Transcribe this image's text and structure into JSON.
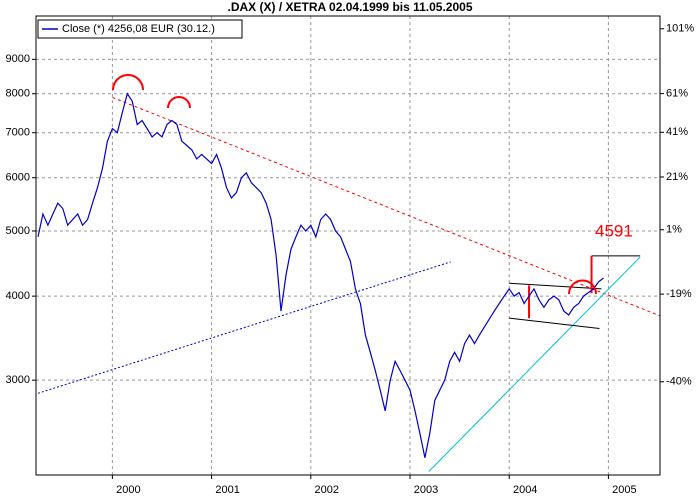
{
  "chart_data": {
    "type": "line",
    "title": ".DAX (X) / XETRA 02.04.1999 bis 11.05.2005",
    "annotation": "4591",
    "log": true,
    "y2log": true,
    "grid": true,
    "legend": "top-left",
    "xlim": [
      1999.23,
      2005.52
    ],
    "xticks": [
      2000,
      2001,
      2002,
      2003,
      2004,
      2005
    ],
    "ylim": [
      2168,
      10440
    ],
    "yticks": [
      3000,
      4000,
      5000,
      6000,
      7000,
      8000,
      9000
    ],
    "y2lim": [
      -56.4,
      110
    ],
    "y2ticks": [
      {
        "value": -40,
        "label": "-40%"
      },
      {
        "value": -19,
        "label": "-19%"
      },
      {
        "value": 1,
        "label": "1%"
      },
      {
        "value": 21,
        "label": "21%"
      },
      {
        "value": 41,
        "label": "41%"
      },
      {
        "value": 61,
        "label": "61%"
      },
      {
        "value": 101,
        "label": "101%"
      }
    ],
    "x": [
      1999.25,
      1999.3,
      1999.35,
      1999.4,
      1999.45,
      1999.5,
      1999.55,
      1999.6,
      1999.65,
      1999.7,
      1999.75,
      1999.8,
      1999.85,
      1999.9,
      1999.95,
      2000.0,
      2000.05,
      2000.1,
      2000.15,
      2000.2,
      2000.25,
      2000.3,
      2000.35,
      2000.4,
      2000.45,
      2000.5,
      2000.55,
      2000.6,
      2000.65,
      2000.7,
      2000.75,
      2000.8,
      2000.85,
      2000.9,
      2000.95,
      2001.0,
      2001.05,
      2001.1,
      2001.15,
      2001.2,
      2001.25,
      2001.3,
      2001.35,
      2001.4,
      2001.45,
      2001.5,
      2001.55,
      2001.6,
      2001.65,
      2001.7,
      2001.75,
      2001.8,
      2001.85,
      2001.9,
      2001.95,
      2002.0,
      2002.05,
      2002.1,
      2002.15,
      2002.2,
      2002.25,
      2002.3,
      2002.35,
      2002.4,
      2002.45,
      2002.5,
      2002.55,
      2002.6,
      2002.65,
      2002.7,
      2002.75,
      2002.8,
      2002.85,
      2002.9,
      2002.95,
      2003.0,
      2003.05,
      2003.1,
      2003.15,
      2003.2,
      2003.25,
      2003.3,
      2003.35,
      2003.4,
      2003.45,
      2003.5,
      2003.55,
      2003.6,
      2003.65,
      2003.7,
      2003.75,
      2003.8,
      2003.85,
      2003.9,
      2003.95,
      2004.0,
      2004.05,
      2004.1,
      2004.15,
      2004.2,
      2004.25,
      2004.3,
      2004.35,
      2004.4,
      2004.45,
      2004.5,
      2004.55,
      2004.6,
      2004.65,
      2004.7,
      2004.75,
      2004.8,
      2004.85,
      2004.9,
      2004.95
    ],
    "series": [
      {
        "name": "Close (*) 4256,08 EUR (30.12.)",
        "color": "#0000cc",
        "values": [
          4900,
          5300,
          5100,
          5300,
          5500,
          5400,
          5100,
          5200,
          5300,
          5100,
          5200,
          5500,
          5800,
          6200,
          6800,
          7100,
          7000,
          7500,
          8000,
          7800,
          7200,
          7300,
          7100,
          6900,
          7000,
          6900,
          7200,
          7300,
          7200,
          6800,
          6700,
          6600,
          6400,
          6500,
          6400,
          6300,
          6500,
          6200,
          5800,
          5600,
          5700,
          6000,
          6100,
          5900,
          5800,
          5700,
          5500,
          5200,
          4600,
          3800,
          4300,
          4700,
          4900,
          5100,
          5000,
          5100,
          4900,
          5200,
          5300,
          5200,
          5000,
          4900,
          4700,
          4500,
          4100,
          3900,
          3500,
          3300,
          3100,
          2900,
          2700,
          3000,
          3200,
          3100,
          3000,
          2900,
          2700,
          2500,
          2300,
          2500,
          2800,
          2900,
          3000,
          3200,
          3300,
          3200,
          3400,
          3500,
          3400,
          3500,
          3600,
          3700,
          3800,
          3900,
          4000,
          4100,
          4000,
          4050,
          3900,
          4000,
          4100,
          3950,
          3850,
          3950,
          4000,
          3950,
          3800,
          3750,
          3850,
          3900,
          4000,
          4050,
          4100,
          4200,
          4256
        ]
      }
    ],
    "trendlines": [
      {
        "color": "#ff0000",
        "style": "dashed",
        "x": [
          2000.0,
          2005.52
        ],
        "values": [
          7900,
          3739
        ]
      },
      {
        "color": "#0000cc",
        "style": "dotted",
        "x": [
          1999.25,
          2003.41
        ],
        "values": [
          2868,
          4498
        ]
      },
      {
        "color": "#00c0e0",
        "style": "solid",
        "x": [
          2003.19,
          2005.32
        ],
        "values": [
          2194,
          4574
        ]
      },
      {
        "color": "#000000",
        "style": "solid",
        "x": [
          2004.0,
          2004.93
        ],
        "values": [
          4180,
          4100
        ]
      },
      {
        "color": "#000000",
        "style": "solid",
        "x": [
          2004.0,
          2004.91
        ],
        "values": [
          3710,
          3580
        ]
      },
      {
        "color": "#000000",
        "style": "solid",
        "x": [
          2004.83,
          2005.32
        ],
        "values": [
          4591,
          4591
        ]
      },
      {
        "color": "#ff0000",
        "style": "solid",
        "x": [
          2004.83,
          2004.83
        ],
        "values": [
          4040,
          4591
        ]
      },
      {
        "color": "#ff0000",
        "style": "solid",
        "x": [
          2004.2,
          2004.2
        ],
        "values": [
          3710,
          4150
        ]
      }
    ]
  }
}
